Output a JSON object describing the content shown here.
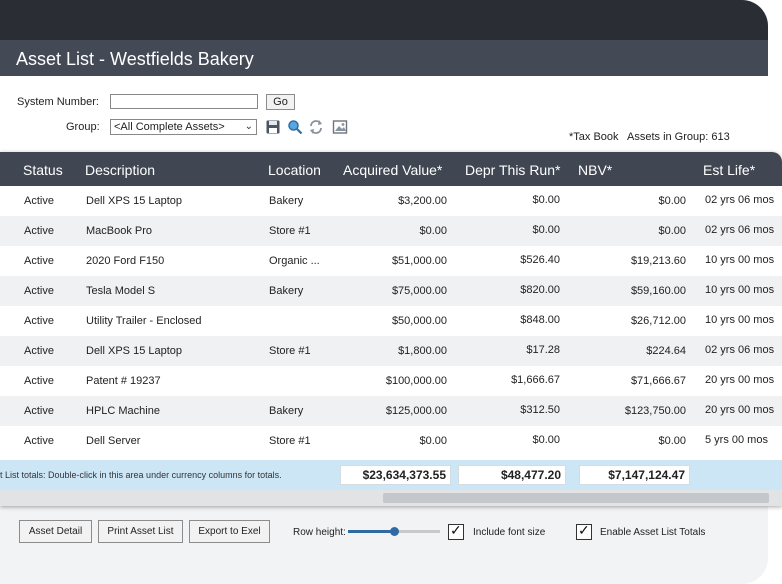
{
  "header": {
    "title": "Asset List - Westfields Bakery"
  },
  "form": {
    "system_number_label": "System Number:",
    "system_number_value": "",
    "go_label": "Go",
    "group_label": "Group:",
    "group_selected": "<All Complete Assets>",
    "tax_book": "*Tax Book",
    "assets_in_group": "Assets in Group: 613"
  },
  "icons": [
    "save-icon",
    "search-icon",
    "refresh-icon",
    "image-icon",
    "chevron-down-icon",
    "checkmark-icon"
  ],
  "colors": {
    "header_bg": "#404753",
    "totals_bg": "#cde6f6",
    "accent": "#2f6aa3"
  },
  "table": {
    "columns": [
      "Status",
      "Description",
      "Location",
      "Acquired Value*",
      "Depr This Run*",
      "NBV*",
      "Est Life*"
    ],
    "rows": [
      [
        "Active",
        "Dell XPS 15 Laptop",
        "Bakery",
        "$3,200.00",
        "$0.00",
        "$0.00",
        "02 yrs 06 mos"
      ],
      [
        "Active",
        "MacBook Pro",
        "Store #1",
        "$0.00",
        "$0.00",
        "$0.00",
        "02 yrs 06 mos"
      ],
      [
        "Active",
        "2020 Ford F150",
        "Organic ...",
        "$51,000.00",
        "$526.40",
        "$19,213.60",
        "10 yrs 00 mos"
      ],
      [
        "Active",
        "Tesla Model S",
        "Bakery",
        "$75,000.00",
        "$820.00",
        "$59,160.00",
        "10 yrs 00 mos"
      ],
      [
        "Active",
        "Utility Trailer - Enclosed",
        "",
        "$50,000.00",
        "$848.00",
        "$26,712.00",
        "10 yrs 00 mos"
      ],
      [
        "Active",
        "Dell XPS 15 Laptop",
        "Store #1",
        "$1,800.00",
        "$17.28",
        "$224.64",
        "02 yrs 06 mos"
      ],
      [
        "Active",
        "Patent # 19237",
        "",
        "$100,000.00",
        "$1,666.67",
        "$71,666.67",
        "20 yrs 00 mos"
      ],
      [
        "Active",
        "HPLC Machine",
        "Bakery",
        "$125,000.00",
        "$312.50",
        "$123,750.00",
        "20 yrs 00 mos"
      ],
      [
        "Active",
        "Dell Server",
        "Store #1",
        "$0.00",
        "$0.00",
        "$0.00",
        "5 yrs 00 mos"
      ]
    ]
  },
  "totals": {
    "note": "t List totals: Double-click in this area under currency columns for totals.",
    "acquired": "$23,634,373.55",
    "depr": "$48,477.20",
    "nbv": "$7,147,124.47"
  },
  "footer": {
    "asset_detail": "Asset Detail",
    "print_list": "Print Asset List",
    "export": "Export to Exel",
    "row_height_label": "Row height:",
    "row_height_level": 0.5,
    "include_font_size": "Include font size",
    "include_font_size_checked": true,
    "enable_totals": "Enable Asset List Totals",
    "enable_totals_checked": true
  }
}
